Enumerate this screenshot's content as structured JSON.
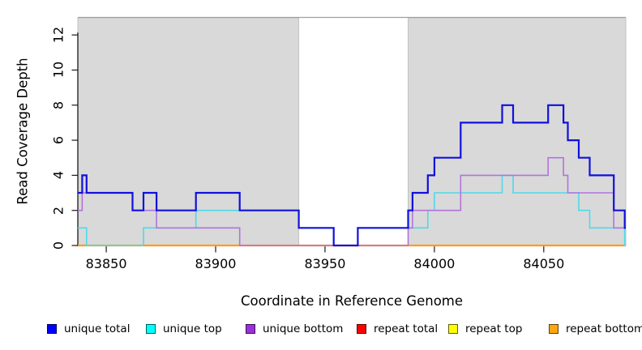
{
  "figure": {
    "xlabel": "Coordinate in Reference Genome",
    "ylabel": "Read Coverage Depth"
  },
  "legend": [
    {
      "label": "unique total",
      "color": "#0000ff"
    },
    {
      "label": "unique top",
      "color": "#00ffff"
    },
    {
      "label": "unique bottom",
      "color": "#9b30d9"
    },
    {
      "label": "repeat total",
      "color": "#ff0000"
    },
    {
      "label": "repeat top",
      "color": "#ffff00"
    },
    {
      "label": "repeat bottom",
      "color": "#ffa510"
    }
  ],
  "chart_data": {
    "type": "line",
    "subtype": "step",
    "title": "",
    "xlabel": "Coordinate in Reference Genome",
    "ylabel": "Read Coverage Depth",
    "xlim": [
      83837,
      84087.5
    ],
    "ylim": [
      0,
      13
    ],
    "grid": false,
    "legend_position": "bottom",
    "x_ticks": [
      {
        "value": 83850,
        "label": "83850"
      },
      {
        "value": 83900,
        "label": "83900"
      },
      {
        "value": 83950,
        "label": "83950"
      },
      {
        "value": 84000,
        "label": "84000"
      },
      {
        "value": 84050,
        "label": "84050"
      }
    ],
    "y_ticks": [
      {
        "value": 0,
        "label": "0"
      },
      {
        "value": 2,
        "label": "2"
      },
      {
        "value": 4,
        "label": "4"
      },
      {
        "value": 6,
        "label": "6"
      },
      {
        "value": 8,
        "label": "8"
      },
      {
        "value": 10,
        "label": "10"
      },
      {
        "value": 12,
        "label": "12"
      }
    ],
    "shaded_regions": [
      {
        "from": 83837,
        "to": 83938,
        "color": "#d9d9d9",
        "border": "#c2c2c2"
      },
      {
        "from": 83988,
        "to": 84087.5,
        "color": "#d9d9d9",
        "border": "#c2c2c2"
      }
    ],
    "series": [
      {
        "name": "unique total",
        "color": "#1010dd",
        "line_width": 2.2,
        "steps": [
          [
            83837,
            3
          ],
          [
            83839,
            4
          ],
          [
            83841,
            3
          ],
          [
            83862,
            2
          ],
          [
            83867,
            3
          ],
          [
            83873,
            2
          ],
          [
            83891,
            3
          ],
          [
            83911,
            2
          ],
          [
            83938,
            1
          ],
          [
            83954,
            0
          ],
          [
            83965,
            1
          ],
          [
            83988,
            2
          ],
          [
            83990,
            3
          ],
          [
            83997,
            4
          ],
          [
            84000,
            5
          ],
          [
            84012,
            7
          ],
          [
            84031,
            8
          ],
          [
            84036,
            7
          ],
          [
            84052,
            8
          ],
          [
            84059,
            7
          ],
          [
            84061,
            6
          ],
          [
            84066,
            5
          ],
          [
            84071,
            4
          ],
          [
            84082,
            2
          ],
          [
            84087,
            1
          ]
        ]
      },
      {
        "name": "unique top",
        "color": "#4fd9e8",
        "line_width": 1.6,
        "steps": [
          [
            83837,
            1
          ],
          [
            83841,
            0
          ],
          [
            83867,
            1
          ],
          [
            83891,
            2
          ],
          [
            83938,
            1
          ],
          [
            83954,
            0
          ],
          [
            83965,
            1
          ],
          [
            83997,
            2
          ],
          [
            84000,
            3
          ],
          [
            84031,
            4
          ],
          [
            84036,
            3
          ],
          [
            84066,
            2
          ],
          [
            84071,
            1
          ],
          [
            84087,
            0
          ]
        ]
      },
      {
        "name": "unique bottom",
        "color": "#b173dd",
        "line_width": 1.6,
        "steps": [
          [
            83837,
            2
          ],
          [
            83839,
            3
          ],
          [
            83862,
            2
          ],
          [
            83873,
            1
          ],
          [
            83911,
            0
          ],
          [
            83988,
            1
          ],
          [
            83990,
            2
          ],
          [
            84012,
            4
          ],
          [
            84052,
            5
          ],
          [
            84059,
            4
          ],
          [
            84061,
            3
          ],
          [
            84082,
            1
          ]
        ]
      },
      {
        "name": "repeat total",
        "color": "#e00000",
        "line_width": 1.6,
        "steps": [
          [
            83837,
            0
          ]
        ]
      },
      {
        "name": "repeat top",
        "color": "#f5e400",
        "line_width": 1.6,
        "steps": [
          [
            83837,
            0
          ]
        ]
      },
      {
        "name": "repeat bottom",
        "color": "#ff9d1c",
        "line_width": 2.2,
        "steps": [
          [
            83837,
            0
          ]
        ]
      }
    ],
    "draw_order": [
      "repeat total",
      "repeat top",
      "repeat bottom",
      "unique top",
      "unique bottom",
      "unique total"
    ]
  }
}
